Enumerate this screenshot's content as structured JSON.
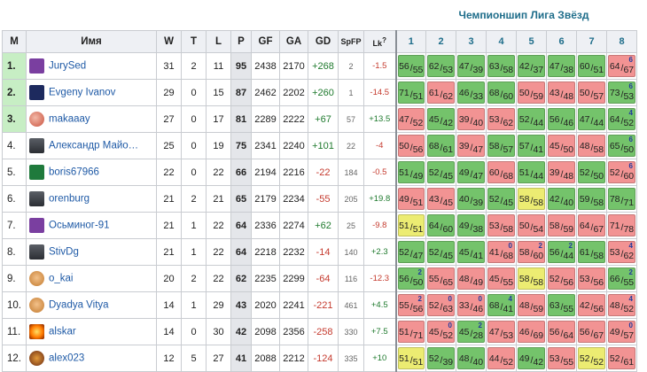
{
  "title": "Чемпионшип Лига Звёзд",
  "headers": {
    "m": "M",
    "name": "Имя",
    "w": "W",
    "t": "T",
    "l": "L",
    "p": "P",
    "gf": "GF",
    "ga": "GA",
    "gd": "GD",
    "spfp": "SpFP",
    "lk": "Lk",
    "lk_help": "?"
  },
  "match_headers": [
    "1",
    "2",
    "3",
    "4",
    "5",
    "6",
    "7",
    "8"
  ],
  "colors": {
    "win": "#74c36b",
    "loss": "#f29393",
    "draw": "#ecec72",
    "top": "#c7eec4",
    "link": "#1f5aa6",
    "accent": "#1e6d8a"
  },
  "players": [
    {
      "rank": "1.",
      "name": "JurySed",
      "avatar": "purple-shirt-avatar",
      "w": "31",
      "t": "2",
      "l": "11",
      "p": "95",
      "gf": "2438",
      "ga": "2170",
      "gd": "+268",
      "spfp": "2",
      "lk": "-1.5",
      "matches": [
        {
          "a": "56",
          "b": "55",
          "r": "w"
        },
        {
          "a": "62",
          "b": "53",
          "r": "w"
        },
        {
          "a": "47",
          "b": "39",
          "r": "w"
        },
        {
          "a": "63",
          "b": "58",
          "r": "w"
        },
        {
          "a": "42",
          "b": "37",
          "r": "w"
        },
        {
          "a": "47",
          "b": "38",
          "r": "w"
        },
        {
          "a": "60",
          "b": "51",
          "r": "w"
        },
        {
          "a": "64",
          "b": "67",
          "r": "l",
          "f": "6"
        }
      ]
    },
    {
      "rank": "2.",
      "name": "Evgeny Ivanov",
      "avatar": "navy-shirt-avatar",
      "w": "29",
      "t": "0",
      "l": "15",
      "p": "87",
      "gf": "2462",
      "ga": "2202",
      "gd": "+260",
      "spfp": "1",
      "lk": "-14.5",
      "matches": [
        {
          "a": "71",
          "b": "51",
          "r": "w"
        },
        {
          "a": "61",
          "b": "62",
          "r": "l"
        },
        {
          "a": "46",
          "b": "33",
          "r": "w"
        },
        {
          "a": "68",
          "b": "60",
          "r": "w"
        },
        {
          "a": "50",
          "b": "59",
          "r": "l"
        },
        {
          "a": "43",
          "b": "48",
          "r": "l"
        },
        {
          "a": "50",
          "b": "57",
          "r": "l"
        },
        {
          "a": "73",
          "b": "53",
          "r": "w",
          "f": "6"
        }
      ]
    },
    {
      "rank": "3.",
      "name": "makaaay",
      "avatar": "ball-avatar",
      "w": "27",
      "t": "0",
      "l": "17",
      "p": "81",
      "gf": "2289",
      "ga": "2222",
      "gd": "+67",
      "spfp": "57",
      "lk": "+13.5",
      "matches": [
        {
          "a": "47",
          "b": "52",
          "r": "l"
        },
        {
          "a": "45",
          "b": "42",
          "r": "w"
        },
        {
          "a": "39",
          "b": "40",
          "r": "l"
        },
        {
          "a": "53",
          "b": "62",
          "r": "l"
        },
        {
          "a": "52",
          "b": "44",
          "r": "w"
        },
        {
          "a": "56",
          "b": "46",
          "r": "w"
        },
        {
          "a": "47",
          "b": "44",
          "r": "w"
        },
        {
          "a": "64",
          "b": "52",
          "r": "w",
          "f": "4"
        }
      ]
    },
    {
      "rank": "4.",
      "name": "Александр Майо…",
      "avatar": "portrait-avatar",
      "w": "25",
      "t": "0",
      "l": "19",
      "p": "75",
      "gf": "2341",
      "ga": "2240",
      "gd": "+101",
      "spfp": "22",
      "lk": "-4",
      "matches": [
        {
          "a": "50",
          "b": "56",
          "r": "l"
        },
        {
          "a": "68",
          "b": "61",
          "r": "w"
        },
        {
          "a": "39",
          "b": "47",
          "r": "l"
        },
        {
          "a": "58",
          "b": "57",
          "r": "w"
        },
        {
          "a": "57",
          "b": "41",
          "r": "w"
        },
        {
          "a": "45",
          "b": "50",
          "r": "l"
        },
        {
          "a": "48",
          "b": "58",
          "r": "l"
        },
        {
          "a": "65",
          "b": "50",
          "r": "w",
          "f": "6"
        }
      ]
    },
    {
      "rank": "5.",
      "name": "boris67966",
      "avatar": "green-shirt-avatar",
      "w": "22",
      "t": "0",
      "l": "22",
      "p": "66",
      "gf": "2194",
      "ga": "2216",
      "gd": "-22",
      "spfp": "184",
      "lk": "-0.5",
      "matches": [
        {
          "a": "51",
          "b": "49",
          "r": "w"
        },
        {
          "a": "52",
          "b": "45",
          "r": "w"
        },
        {
          "a": "49",
          "b": "47",
          "r": "w"
        },
        {
          "a": "60",
          "b": "68",
          "r": "l"
        },
        {
          "a": "51",
          "b": "44",
          "r": "w"
        },
        {
          "a": "39",
          "b": "48",
          "r": "l"
        },
        {
          "a": "52",
          "b": "50",
          "r": "w"
        },
        {
          "a": "52",
          "b": "60",
          "r": "l",
          "f": "6"
        }
      ]
    },
    {
      "rank": "6.",
      "name": "orenburg",
      "avatar": "portrait-avatar",
      "w": "21",
      "t": "2",
      "l": "21",
      "p": "65",
      "gf": "2179",
      "ga": "2234",
      "gd": "-55",
      "spfp": "205",
      "lk": "+19.8",
      "matches": [
        {
          "a": "49",
          "b": "51",
          "r": "l"
        },
        {
          "a": "43",
          "b": "45",
          "r": "l"
        },
        {
          "a": "40",
          "b": "39",
          "r": "w"
        },
        {
          "a": "52",
          "b": "45",
          "r": "w"
        },
        {
          "a": "58",
          "b": "58",
          "r": "d"
        },
        {
          "a": "42",
          "b": "40",
          "r": "w"
        },
        {
          "a": "59",
          "b": "58",
          "r": "w"
        },
        {
          "a": "78",
          "b": "71",
          "r": "w"
        }
      ]
    },
    {
      "rank": "7.",
      "name": "Осьминог-91",
      "avatar": "purple-shirt-avatar",
      "w": "21",
      "t": "1",
      "l": "22",
      "p": "64",
      "gf": "2336",
      "ga": "2274",
      "gd": "+62",
      "spfp": "25",
      "lk": "-9.8",
      "matches": [
        {
          "a": "51",
          "b": "51",
          "r": "d"
        },
        {
          "a": "64",
          "b": "60",
          "r": "w"
        },
        {
          "a": "49",
          "b": "38",
          "r": "w"
        },
        {
          "a": "53",
          "b": "58",
          "r": "l"
        },
        {
          "a": "50",
          "b": "54",
          "r": "l"
        },
        {
          "a": "58",
          "b": "59",
          "r": "l"
        },
        {
          "a": "64",
          "b": "67",
          "r": "l"
        },
        {
          "a": "71",
          "b": "78",
          "r": "l"
        }
      ]
    },
    {
      "rank": "8.",
      "name": "StivDg",
      "avatar": "portrait-avatar",
      "w": "21",
      "t": "1",
      "l": "22",
      "p": "64",
      "gf": "2218",
      "ga": "2232",
      "gd": "-14",
      "spfp": "140",
      "lk": "+2.3",
      "matches": [
        {
          "a": "52",
          "b": "47",
          "r": "w"
        },
        {
          "a": "52",
          "b": "45",
          "r": "w"
        },
        {
          "a": "45",
          "b": "41",
          "r": "w"
        },
        {
          "a": "41",
          "b": "68",
          "r": "l",
          "f": "0"
        },
        {
          "a": "58",
          "b": "60",
          "r": "l",
          "f": "2"
        },
        {
          "a": "56",
          "b": "44",
          "r": "w",
          "f": "2"
        },
        {
          "a": "61",
          "b": "58",
          "r": "w"
        },
        {
          "a": "53",
          "b": "62",
          "r": "l",
          "f": "4"
        }
      ]
    },
    {
      "rank": "9.",
      "name": "o_kai",
      "avatar": "face-avatar",
      "w": "20",
      "t": "2",
      "l": "22",
      "p": "62",
      "gf": "2235",
      "ga": "2299",
      "gd": "-64",
      "spfp": "116",
      "lk": "-12.3",
      "matches": [
        {
          "a": "56",
          "b": "50",
          "r": "w",
          "f": "2"
        },
        {
          "a": "55",
          "b": "65",
          "r": "l"
        },
        {
          "a": "48",
          "b": "49",
          "r": "l"
        },
        {
          "a": "45",
          "b": "55",
          "r": "l"
        },
        {
          "a": "58",
          "b": "58",
          "r": "d"
        },
        {
          "a": "52",
          "b": "56",
          "r": "l"
        },
        {
          "a": "53",
          "b": "56",
          "r": "l"
        },
        {
          "a": "66",
          "b": "55",
          "r": "w",
          "f": "2"
        }
      ]
    },
    {
      "rank": "10.",
      "name": "Dyadya Vitya",
      "avatar": "face-avatar",
      "w": "14",
      "t": "1",
      "l": "29",
      "p": "43",
      "gf": "2020",
      "ga": "2241",
      "gd": "-221",
      "spfp": "461",
      "lk": "+4.5",
      "matches": [
        {
          "a": "55",
          "b": "56",
          "r": "l",
          "f": "2"
        },
        {
          "a": "52",
          "b": "63",
          "r": "l",
          "f": "0"
        },
        {
          "a": "33",
          "b": "46",
          "r": "l",
          "f": "0"
        },
        {
          "a": "68",
          "b": "41",
          "r": "w",
          "f": "4"
        },
        {
          "a": "48",
          "b": "59",
          "r": "l"
        },
        {
          "a": "63",
          "b": "55",
          "r": "w"
        },
        {
          "a": "42",
          "b": "56",
          "r": "l"
        },
        {
          "a": "48",
          "b": "52",
          "r": "l",
          "f": "4"
        }
      ]
    },
    {
      "rank": "11.",
      "name": "alskar",
      "avatar": "explosion-avatar",
      "w": "14",
      "t": "0",
      "l": "30",
      "p": "42",
      "gf": "2098",
      "ga": "2356",
      "gd": "-258",
      "spfp": "330",
      "lk": "+7.5",
      "matches": [
        {
          "a": "51",
          "b": "71",
          "r": "l"
        },
        {
          "a": "45",
          "b": "52",
          "r": "l",
          "f": "0"
        },
        {
          "a": "45",
          "b": "28",
          "r": "w",
          "f": "2"
        },
        {
          "a": "47",
          "b": "53",
          "r": "l"
        },
        {
          "a": "46",
          "b": "69",
          "r": "l"
        },
        {
          "a": "56",
          "b": "64",
          "r": "l"
        },
        {
          "a": "56",
          "b": "67",
          "r": "l"
        },
        {
          "a": "49",
          "b": "57",
          "r": "l",
          "f": "0"
        }
      ]
    },
    {
      "rank": "12.",
      "name": "alex023",
      "avatar": "dragon-avatar",
      "w": "12",
      "t": "5",
      "l": "27",
      "p": "41",
      "gf": "2088",
      "ga": "2212",
      "gd": "-124",
      "spfp": "335",
      "lk": "+10",
      "matches": [
        {
          "a": "51",
          "b": "51",
          "r": "d"
        },
        {
          "a": "52",
          "b": "39",
          "r": "w"
        },
        {
          "a": "48",
          "b": "40",
          "r": "w"
        },
        {
          "a": "44",
          "b": "52",
          "r": "l"
        },
        {
          "a": "49",
          "b": "42",
          "r": "w"
        },
        {
          "a": "53",
          "b": "55",
          "r": "l"
        },
        {
          "a": "52",
          "b": "52",
          "r": "d"
        },
        {
          "a": "52",
          "b": "61",
          "r": "l"
        }
      ]
    }
  ]
}
